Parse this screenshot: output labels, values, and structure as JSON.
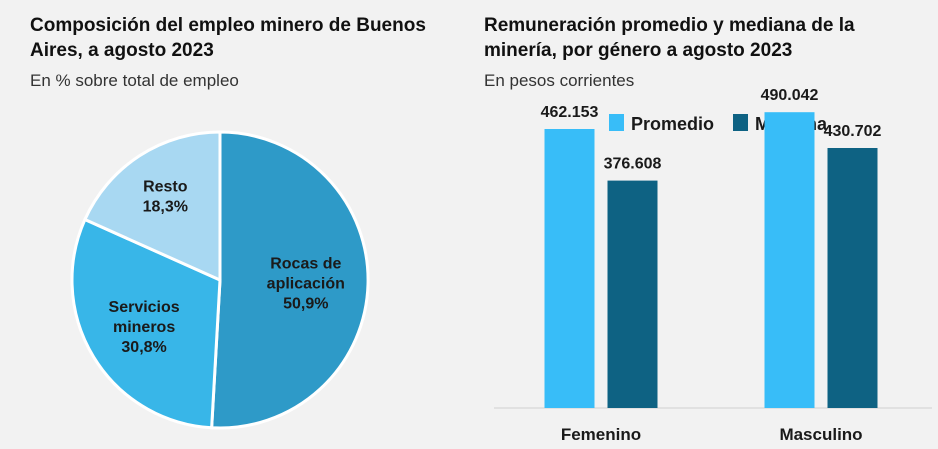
{
  "charts": [
    {
      "title_line1": "Composición del empleo minero de Buenos",
      "title_line2": "Aires, a agosto 2023",
      "subtitle": "En % sobre total de empleo"
    },
    {
      "title_line1": "Remuneración promedio y mediana de la",
      "title_line2": "minería, por género a agosto 2023",
      "subtitle": "En pesos corrientes"
    }
  ],
  "chart_data": [
    {
      "type": "pie",
      "title": "Composición del empleo minero de Buenos Aires, a agosto 2023",
      "subtitle": "En % sobre total de empleo",
      "slices": [
        {
          "label_lines": [
            "Rocas de",
            "aplicación"
          ],
          "value": 50.9,
          "value_label": "50,9%",
          "color": "#2e9ac8"
        },
        {
          "label_lines": [
            "Servicios",
            "mineros"
          ],
          "value": 30.8,
          "value_label": "30,8%",
          "color": "#38b6e8"
        },
        {
          "label_lines": [
            "Resto"
          ],
          "value": 18.3,
          "value_label": "18,3%",
          "color": "#a8d8f2"
        }
      ]
    },
    {
      "type": "bar",
      "title": "Remuneración promedio y mediana de la minería, por género a agosto 2023",
      "subtitle": "En pesos corrientes",
      "categories": [
        "Femenino",
        "Masculino"
      ],
      "series": [
        {
          "name": "Promedio",
          "color": "#38bdf8",
          "values": [
            462153,
            490042
          ],
          "labels": [
            "462.153",
            "490.042"
          ]
        },
        {
          "name": "Mediana",
          "color": "#0e6283",
          "values": [
            376608,
            430702
          ],
          "labels": [
            "376.608",
            "430.702"
          ]
        }
      ],
      "legend_position": "top",
      "ylim": [
        0,
        540000
      ],
      "grid": false
    }
  ]
}
